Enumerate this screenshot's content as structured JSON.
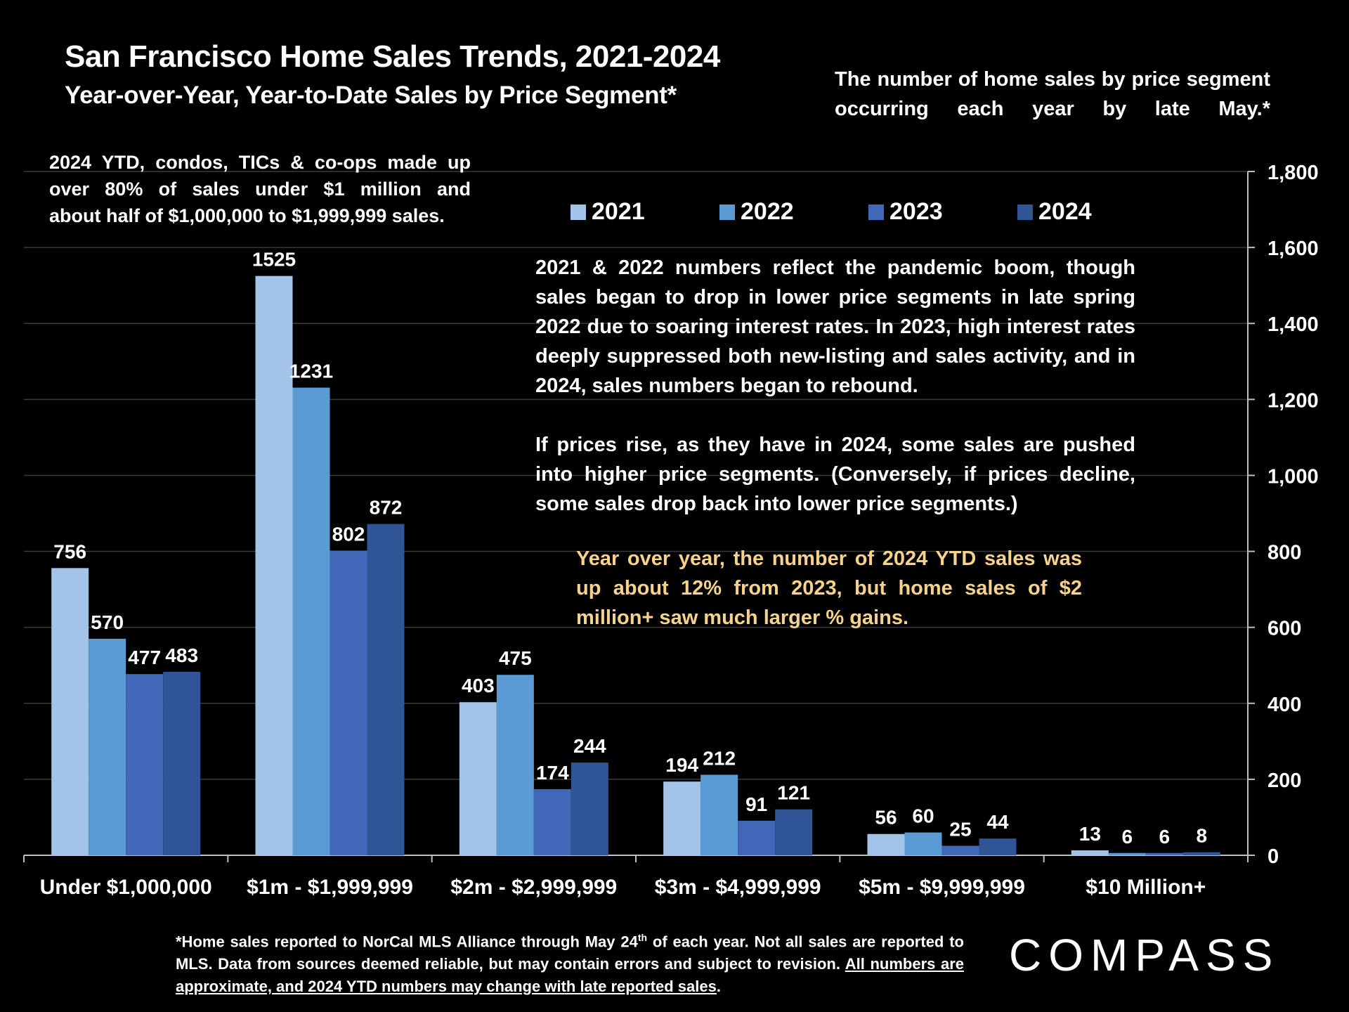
{
  "header": {
    "title": "San Francisco Home Sales Trends, 2021-2024",
    "subtitle": "Year-over-Year, Year-to-Date Sales by Price Segment*",
    "top_note": "The number of home sales by price segment occurring each year by late May.*"
  },
  "notes": {
    "condo_lines": [
      "2024 YTD, condos, TICs & co-ops made up",
      "over 80% of sales under $1 million and",
      "about half of $1,000,000 to $1,999,999 sales."
    ],
    "pandemic_p1": "2021 & 2022 numbers reflect the pandemic boom, though sales began to drop in lower price segments in late spring 2022 due to soaring interest rates. In 2023, high interest rates deeply suppressed both new-listing and sales activity, and in 2024, sales numbers began to rebound.",
    "pandemic_p2": "If prices rise, as they have in 2024, some sales are pushed into higher price segments. (Conversely, if prices decline, some sales drop back into lower price segments.)",
    "yoy": "Year over year, the number of 2024 YTD sales was up about 12% from 2023, but home sales of $2 million+ saw much larger % gains."
  },
  "footnote": {
    "part1": "*Home sales reported to NorCal MLS Alliance through May 24",
    "sup": "th",
    "part2": " of each year. Not all sales are reported to MLS. Data from sources deemed reliable, but may contain errors and subject to revision.",
    "underlined": "All numbers are approximate, and 2024 YTD numbers may change with late reported sales",
    "end": "."
  },
  "logo": {
    "text": "COMPASS"
  },
  "chart_data": {
    "type": "bar",
    "title": "San Francisco Home Sales Trends, 2021-2024",
    "xlabel": "",
    "ylabel": "",
    "ylim": [
      0,
      1800
    ],
    "yticks": [
      0,
      200,
      400,
      600,
      800,
      1000,
      1200,
      1400,
      1600,
      1800
    ],
    "ytick_labels": [
      "0",
      "200",
      "400",
      "600",
      "800",
      "1,000",
      "1,200",
      "1,400",
      "1,600",
      "1,800"
    ],
    "grid": true,
    "legend_position": "top",
    "categories": [
      "Under $1,000,000",
      "$1m - $1,999,999",
      "$2m - $2,999,999",
      "$3m - $4,999,999",
      "$5m - $9,999,999",
      "$10 Million+"
    ],
    "series": [
      {
        "name": "2021",
        "color": "#a3c4e8",
        "values": [
          756,
          1525,
          403,
          194,
          56,
          13
        ]
      },
      {
        "name": "2022",
        "color": "#5b9bd5",
        "values": [
          570,
          1231,
          475,
          212,
          60,
          6
        ]
      },
      {
        "name": "2023",
        "color": "#4168b8",
        "values": [
          477,
          802,
          174,
          91,
          25,
          6
        ]
      },
      {
        "name": "2024",
        "color": "#2f5597",
        "values": [
          483,
          872,
          244,
          121,
          44,
          8
        ]
      }
    ]
  }
}
